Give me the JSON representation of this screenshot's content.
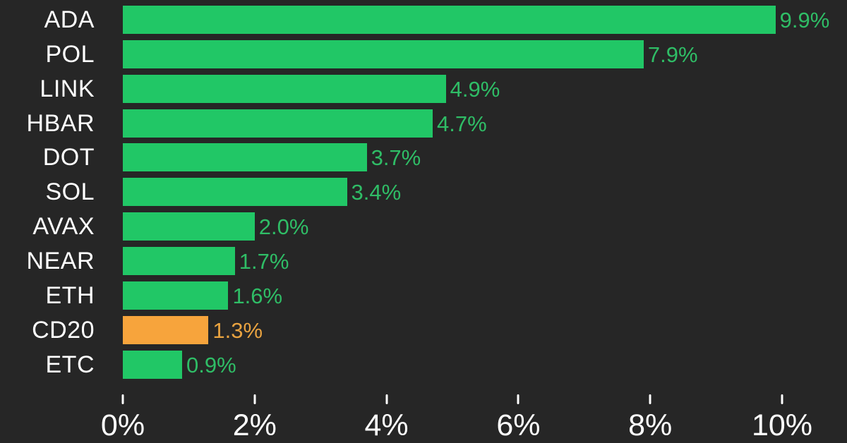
{
  "chart_data": {
    "type": "bar",
    "orientation": "horizontal",
    "title": "",
    "categories": [
      "ADA",
      "POL",
      "LINK",
      "HBAR",
      "DOT",
      "SOL",
      "AVAX",
      "NEAR",
      "ETH",
      "CD20",
      "ETC"
    ],
    "values": [
      9.9,
      7.9,
      4.9,
      4.7,
      3.7,
      3.4,
      2.0,
      1.7,
      1.6,
      1.3,
      0.9
    ],
    "value_labels": [
      "9.9%",
      "7.9%",
      "4.9%",
      "4.7%",
      "3.7%",
      "3.4%",
      "2.0%",
      "1.7%",
      "1.6%",
      "1.3%",
      "0.9%"
    ],
    "bar_styles": [
      "green",
      "green",
      "green",
      "green",
      "green",
      "green",
      "green",
      "green",
      "green",
      "orange",
      "green"
    ],
    "x_ticks": [
      {
        "value": 0,
        "label": "0%"
      },
      {
        "value": 2,
        "label": "2%"
      },
      {
        "value": 4,
        "label": "4%"
      },
      {
        "value": 6,
        "label": "6%"
      },
      {
        "value": 8,
        "label": "8%"
      },
      {
        "value": 10,
        "label": "10%"
      }
    ],
    "xlim": [
      0,
      10.98
    ],
    "grid": false,
    "legend": null,
    "colors": {
      "background": "#262626",
      "category_text": "#ffffff",
      "axis_text": "#ffffff",
      "tick_mark": "#ffffff",
      "green": "#21C766",
      "green_text": "#2FBD66",
      "orange": "#F7A43C",
      "orange_text": "#E9A340"
    }
  }
}
